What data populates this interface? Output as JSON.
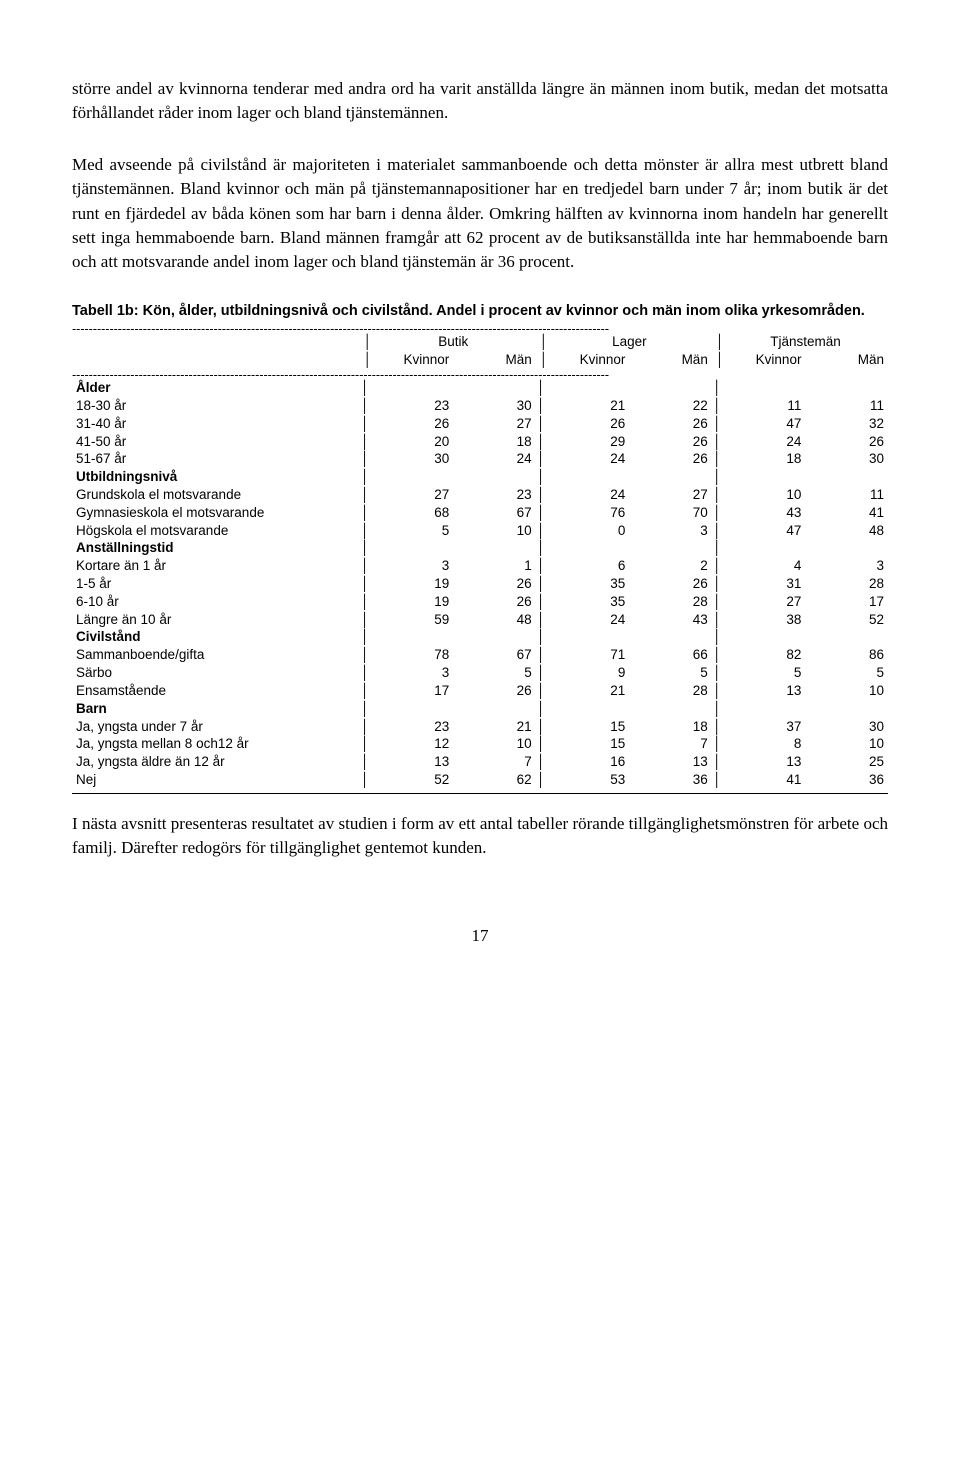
{
  "paragraph1": "större andel av kvinnorna tenderar med andra ord ha varit anställda längre än männen inom butik, medan det motsatta förhållandet råder inom lager och bland tjänstemännen.",
  "paragraph2": "Med avseende på civilstånd är majoriteten i materialet sammanboende och detta mönster är allra mest utbrett bland tjänstemännen. Bland kvinnor och män på tjänstemannapositioner har en tredjedel barn under 7 år; inom butik är det runt en fjärdedel av båda könen som har barn i denna ålder. Omkring hälften av kvinnorna inom handeln har generellt sett inga hemmaboende barn. Bland männen framgår att 62 procent av de butiksanställda inte har hemmaboende barn och att motsvarande andel inom lager och bland tjänstemän är 36 procent.",
  "caption": "Tabell 1b: Kön, ålder, utbildningsnivå och civilstånd. Andel i procent av kvinnor och män inom olika yrkesområden.",
  "header": {
    "groups": [
      "Butik",
      "Lager",
      "Tjänstemän"
    ],
    "sub": [
      "Kvinnor",
      "Män"
    ]
  },
  "sections": [
    {
      "title": "Ålder",
      "rows": [
        {
          "label": "18-30 år",
          "v": [
            23,
            30,
            21,
            22,
            11,
            11
          ]
        },
        {
          "label": "31-40 år",
          "v": [
            26,
            27,
            26,
            26,
            47,
            32
          ]
        },
        {
          "label": "41-50 år",
          "v": [
            20,
            18,
            29,
            26,
            24,
            26
          ]
        },
        {
          "label": "51-67 år",
          "v": [
            30,
            24,
            24,
            26,
            18,
            30
          ]
        }
      ]
    },
    {
      "title": "Utbildningsnivå",
      "rows": [
        {
          "label": "Grundskola el motsvarande",
          "v": [
            27,
            23,
            24,
            27,
            10,
            11
          ]
        },
        {
          "label": "Gymnasieskola el motsvarande",
          "v": [
            68,
            67,
            76,
            70,
            43,
            41
          ]
        },
        {
          "label": "Högskola el motsvarande",
          "v": [
            5,
            10,
            0,
            3,
            47,
            48
          ]
        }
      ]
    },
    {
      "title": "Anställningstid",
      "rows": [
        {
          "label": "Kortare än 1 år",
          "v": [
            3,
            1,
            6,
            2,
            4,
            3
          ]
        },
        {
          "label": "1-5 år",
          "v": [
            19,
            26,
            35,
            26,
            31,
            28
          ]
        },
        {
          "label": "6-10 år",
          "v": [
            19,
            26,
            35,
            28,
            27,
            17
          ]
        },
        {
          "label": "Längre än 10 år",
          "v": [
            59,
            48,
            24,
            43,
            38,
            52
          ]
        }
      ]
    },
    {
      "title": "Civilstånd",
      "rows": [
        {
          "label": "Sammanboende/gifta",
          "v": [
            78,
            67,
            71,
            66,
            82,
            86
          ]
        },
        {
          "label": "Särbo",
          "v": [
            3,
            5,
            9,
            5,
            5,
            5
          ]
        },
        {
          "label": "Ensamstående",
          "v": [
            17,
            26,
            21,
            28,
            13,
            10
          ]
        }
      ]
    },
    {
      "title": "Barn",
      "rows": [
        {
          "label": "Ja, yngsta under 7 år",
          "v": [
            23,
            21,
            15,
            18,
            37,
            30
          ]
        },
        {
          "label": "Ja, yngsta mellan 8 och12 år",
          "v": [
            12,
            10,
            15,
            7,
            8,
            10
          ]
        },
        {
          "label": "Ja, yngsta äldre än 12 år",
          "v": [
            13,
            7,
            16,
            13,
            13,
            25
          ]
        },
        {
          "label": "Nej",
          "v": [
            52,
            62,
            53,
            36,
            41,
            36
          ]
        }
      ]
    }
  ],
  "paragraph3": "I nästa avsnitt presenteras resultatet av studien i form av ett antal tabeller rörande tillgänglighetsmönstren för arbete och familj. Därefter redogörs för tillgänglighet gentemot kunden.",
  "pageNumber": "17",
  "dash": "---------------------------------------------------------------------------------------------------------------------------------"
}
